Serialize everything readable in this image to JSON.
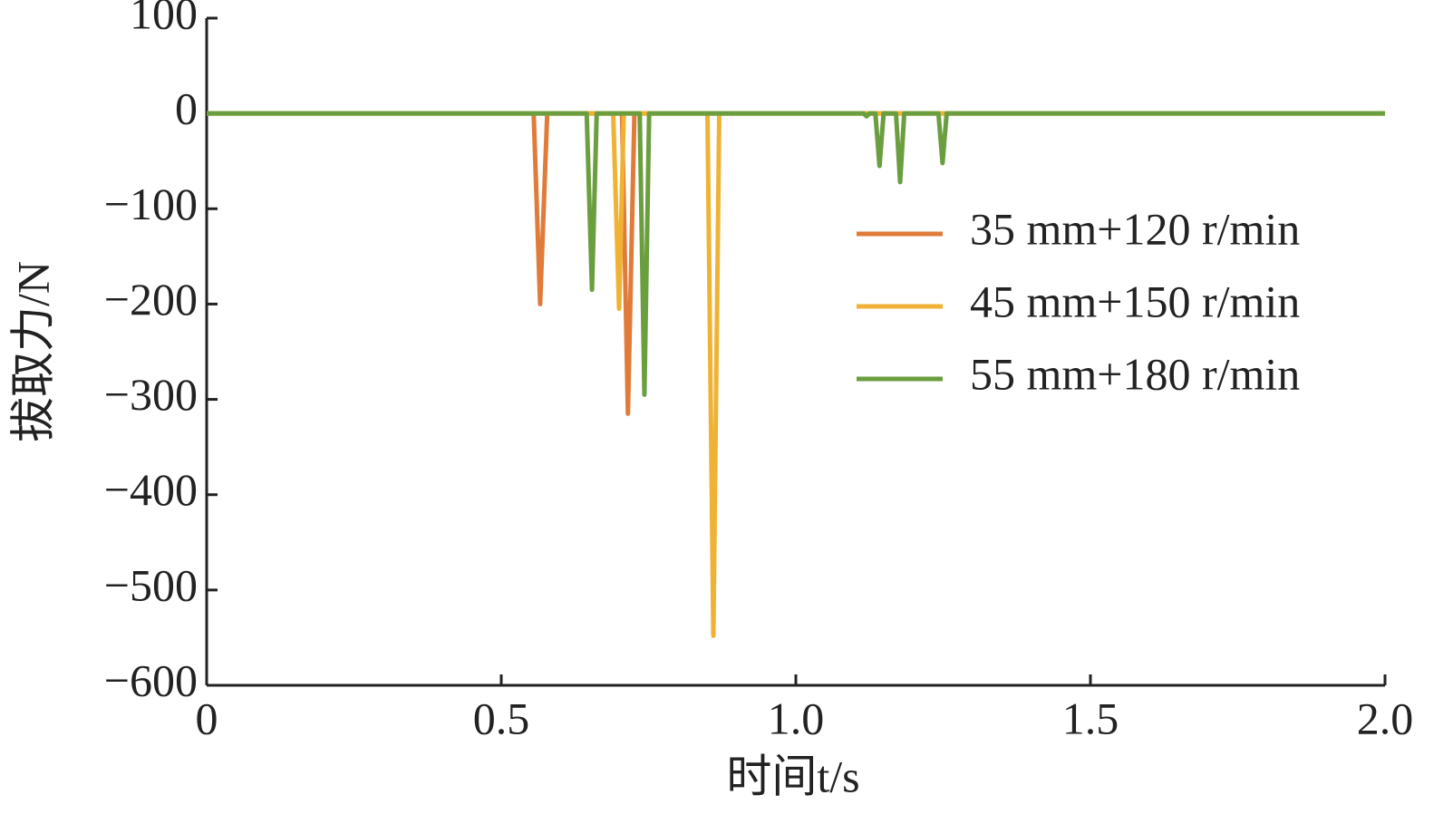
{
  "chart_data": {
    "type": "line",
    "x_label": "时间t/s",
    "y_label": "拔取力/N",
    "xlim": [
      0,
      2.0
    ],
    "ylim": [
      -600,
      100
    ],
    "xticks": [
      0,
      0.5,
      {
        "value": 1.0,
        "label": "1.0"
      },
      1.5,
      {
        "value": 2.0,
        "label": "2.0"
      }
    ],
    "yticks": [
      {
        "value": -600,
        "label": "−600"
      },
      {
        "value": -500,
        "label": "−500"
      },
      {
        "value": -400,
        "label": "−400"
      },
      {
        "value": -300,
        "label": "−300"
      },
      {
        "value": -200,
        "label": "−200"
      },
      {
        "value": -100,
        "label": "−100"
      },
      0,
      100
    ],
    "series": [
      {
        "name": "35 mm+120 r/min",
        "color": "#e07b3a",
        "x": [
          0,
          0.555,
          0.566,
          0.578,
          0.705,
          0.715,
          0.726,
          2.0
        ],
        "values": [
          0,
          0,
          -200,
          0,
          0,
          -315,
          0,
          0
        ]
      },
      {
        "name": "45 mm+150 r/min",
        "color": "#f0b234",
        "x": [
          0,
          0.69,
          0.7,
          0.708,
          0.85,
          0.86,
          0.87,
          2.0
        ],
        "values": [
          0,
          0,
          -205,
          0,
          0,
          -548,
          0,
          0
        ]
      },
      {
        "name": "55 mm+180 r/min",
        "color": "#6a9e3f",
        "x": [
          0,
          0.645,
          0.654,
          0.662,
          0.735,
          0.743,
          0.751,
          1.115,
          1.12,
          1.125,
          1.135,
          1.142,
          1.149,
          1.17,
          1.177,
          1.184,
          1.242,
          1.249,
          1.256,
          2.0
        ],
        "values": [
          0,
          0,
          -185,
          0,
          0,
          -295,
          0,
          0,
          -3,
          0,
          0,
          -55,
          0,
          0,
          -72,
          0,
          0,
          -52,
          0,
          0
        ]
      }
    ]
  }
}
